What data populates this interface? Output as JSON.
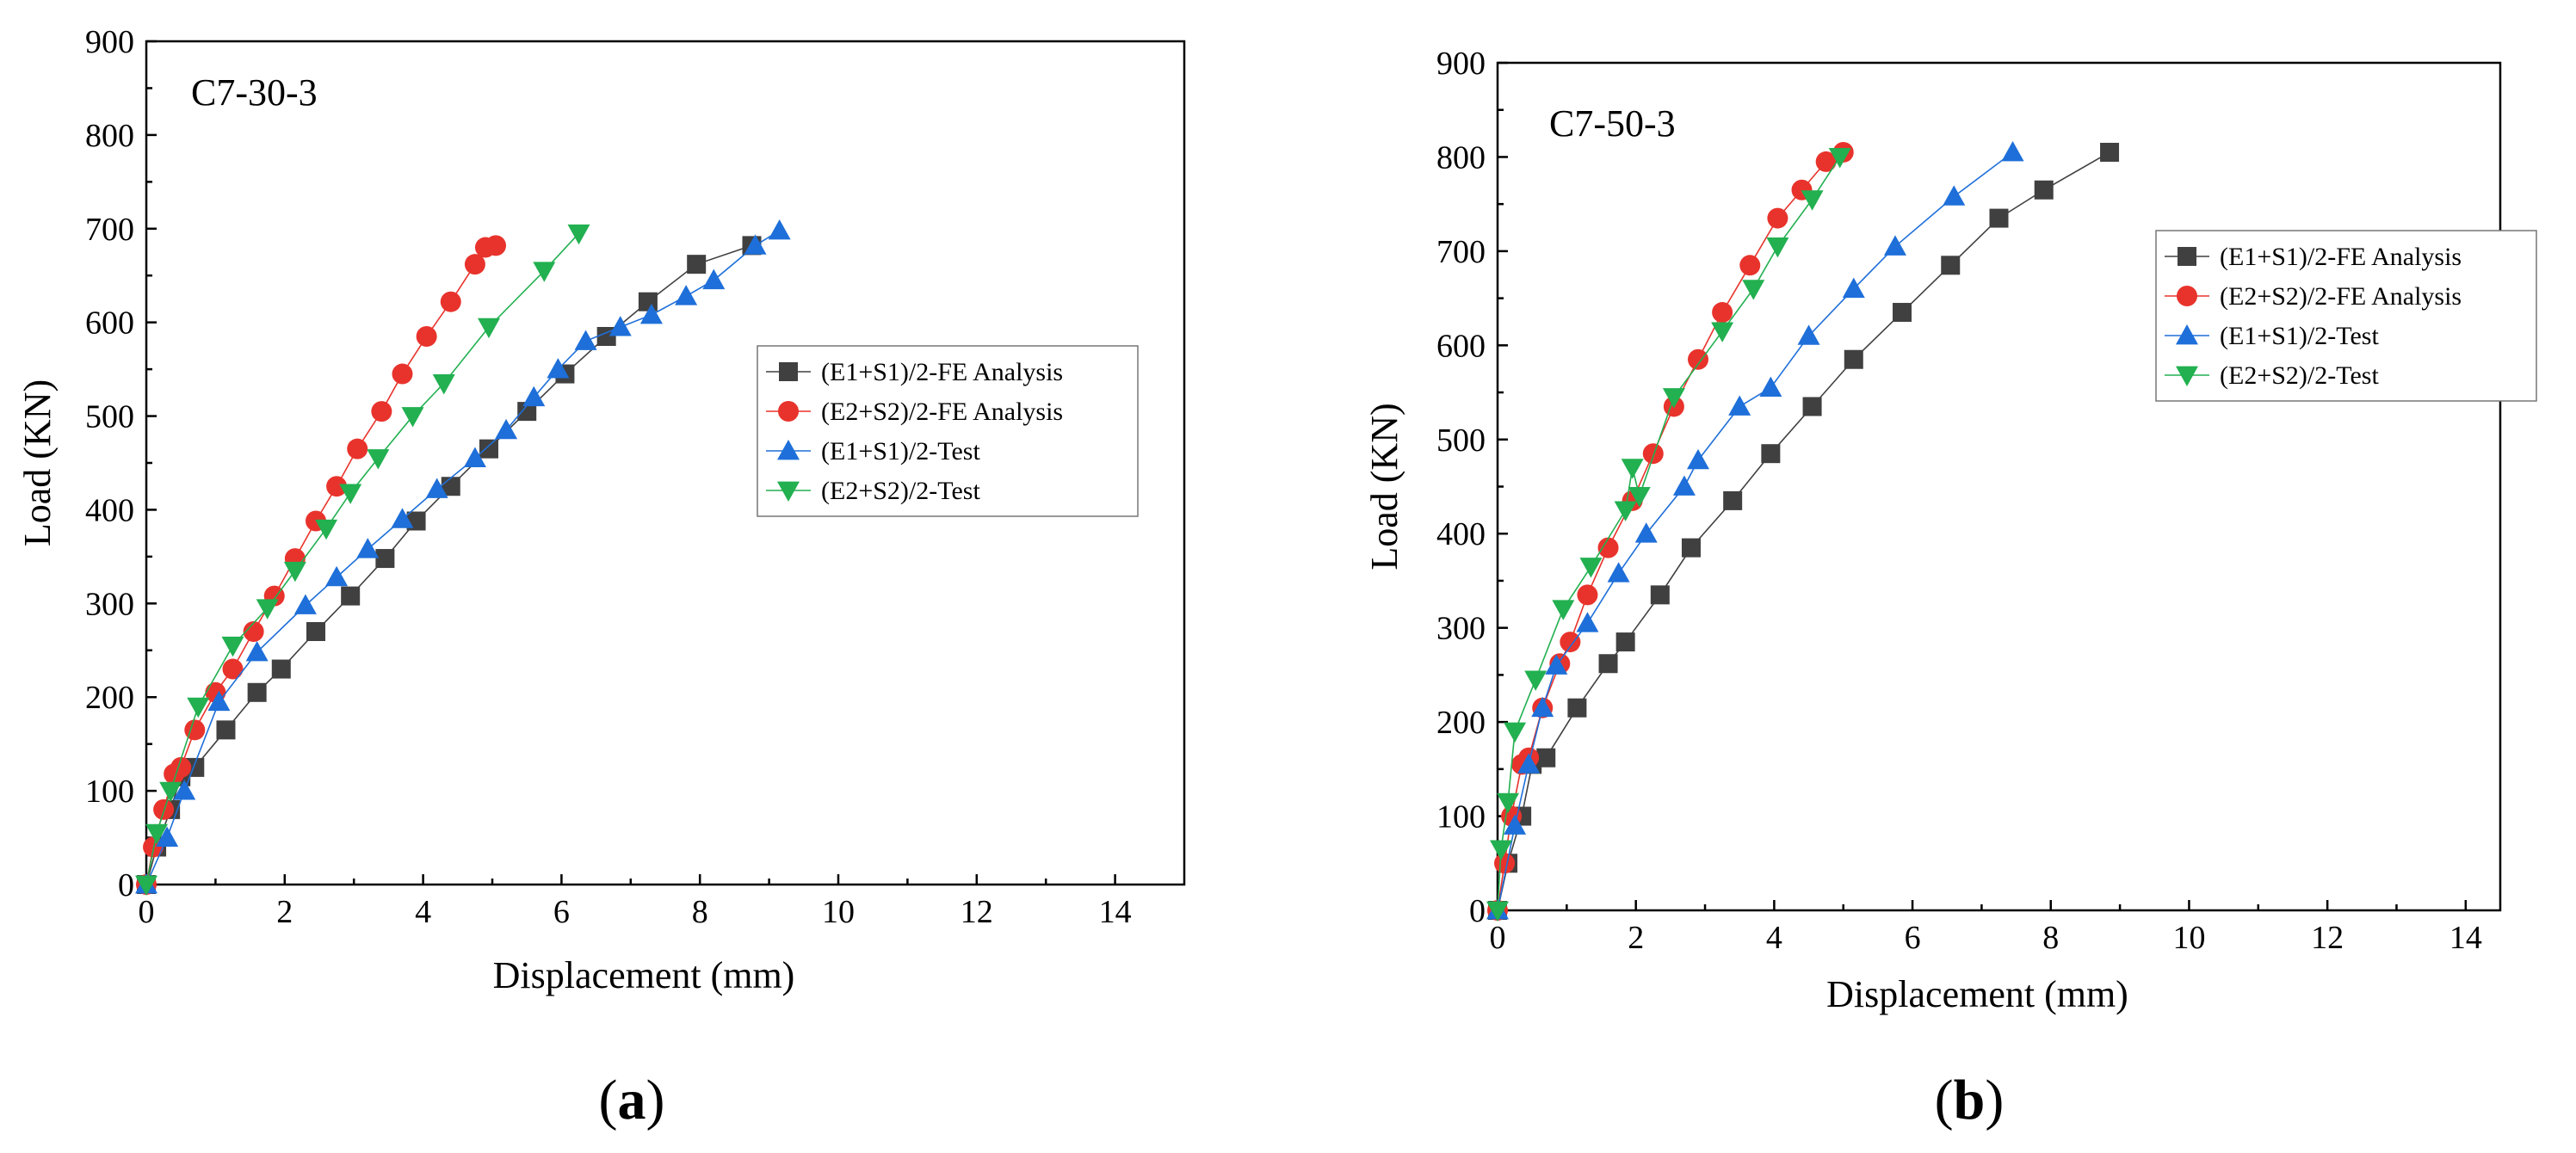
{
  "chart_data": [
    {
      "type": "line",
      "panel_label": "C7-30-3",
      "caption_letter": "a",
      "xlabel": "Displacement (mm)",
      "ylabel": "Load (KN)",
      "xlim": [
        0,
        15
      ],
      "ylim": [
        0,
        900
      ],
      "xticks": [
        0,
        2,
        4,
        6,
        8,
        10,
        12,
        14
      ],
      "yticks": [
        0,
        100,
        200,
        300,
        400,
        500,
        600,
        700,
        800,
        900
      ],
      "legend_position": "center-right",
      "series": [
        {
          "name": "(E1+S1)/2-FE Analysis",
          "color": "#404040",
          "marker": "square",
          "x": [
            0.0,
            0.15,
            0.35,
            0.5,
            0.7,
            1.15,
            1.6,
            1.95,
            2.45,
            2.95,
            3.45,
            3.9,
            4.4,
            4.95,
            5.5,
            6.05,
            6.65,
            7.25,
            7.95,
            8.75
          ],
          "y": [
            0,
            40,
            80,
            115,
            125,
            165,
            205,
            230,
            270,
            308,
            348,
            388,
            425,
            465,
            505,
            545,
            585,
            622,
            662,
            682
          ]
        },
        {
          "name": "(E2+S2)/2-FE Analysis",
          "color": "#e8332c",
          "marker": "circle",
          "x": [
            0.0,
            0.1,
            0.25,
            0.4,
            0.5,
            0.7,
            1.0,
            1.25,
            1.55,
            1.85,
            2.15,
            2.45,
            2.75,
            3.05,
            3.4,
            3.7,
            4.05,
            4.4,
            4.75,
            4.9,
            5.05
          ],
          "y": [
            0,
            40,
            80,
            118,
            125,
            165,
            205,
            230,
            270,
            308,
            348,
            388,
            425,
            465,
            505,
            545,
            585,
            622,
            662,
            680,
            682
          ]
        },
        {
          "name": "(E1+S1)/2-Test",
          "color": "#1e6fd9",
          "marker": "triangle-up",
          "x": [
            0.0,
            0.3,
            0.55,
            1.05,
            1.6,
            2.3,
            2.75,
            3.2,
            3.7,
            4.2,
            4.75,
            5.2,
            5.6,
            5.95,
            6.35,
            6.85,
            7.3,
            7.8,
            8.2,
            8.8,
            9.15
          ],
          "y": [
            0,
            50,
            100,
            195,
            248,
            298,
            328,
            358,
            390,
            422,
            455,
            485,
            520,
            550,
            580,
            595,
            608,
            628,
            645,
            682,
            698
          ]
        },
        {
          "name": "(E2+S2)/2-Test",
          "color": "#22b050",
          "marker": "triangle-down",
          "x": [
            0.0,
            0.15,
            0.35,
            0.75,
            1.25,
            1.75,
            2.15,
            2.6,
            2.95,
            3.35,
            3.85,
            4.3,
            4.95,
            5.75,
            6.25
          ],
          "y": [
            0,
            55,
            100,
            190,
            255,
            295,
            335,
            380,
            418,
            455,
            500,
            535,
            595,
            655,
            695
          ]
        }
      ]
    },
    {
      "type": "line",
      "panel_label": "C7-50-3",
      "caption_letter": "b",
      "xlabel": "Displacement (mm)",
      "ylabel": "Load (KN)",
      "xlim": [
        0,
        14.5
      ],
      "ylim": [
        0,
        900
      ],
      "xticks": [
        0,
        2,
        4,
        6,
        8,
        10,
        12,
        14
      ],
      "yticks": [
        0,
        100,
        200,
        300,
        400,
        500,
        600,
        700,
        800,
        900
      ],
      "legend_position": "top-right",
      "series": [
        {
          "name": "(E1+S1)/2-FE Analysis",
          "color": "#404040",
          "marker": "square",
          "x": [
            0.0,
            0.15,
            0.35,
            0.5,
            0.7,
            1.15,
            1.6,
            1.85,
            2.35,
            2.8,
            3.4,
            3.95,
            4.55,
            5.15,
            5.85,
            6.55,
            7.25,
            7.9,
            8.85
          ],
          "y": [
            0,
            50,
            100,
            155,
            162,
            215,
            262,
            285,
            335,
            385,
            435,
            485,
            535,
            585,
            635,
            685,
            735,
            765,
            805
          ]
        },
        {
          "name": "(E2+S2)/2-FE Analysis",
          "color": "#e8332c",
          "marker": "circle",
          "x": [
            0.0,
            0.1,
            0.2,
            0.35,
            0.45,
            0.65,
            0.9,
            1.05,
            1.3,
            1.6,
            1.95,
            2.25,
            2.55,
            2.9,
            3.25,
            3.65,
            4.05,
            4.4,
            4.75,
            5.0
          ],
          "y": [
            0,
            50,
            100,
            155,
            162,
            215,
            262,
            285,
            335,
            385,
            435,
            485,
            535,
            585,
            635,
            685,
            735,
            765,
            795,
            805
          ]
        },
        {
          "name": "(E1+S1)/2-Test",
          "color": "#1e6fd9",
          "marker": "triangle-up",
          "x": [
            0.0,
            0.25,
            0.45,
            0.65,
            0.85,
            1.3,
            1.75,
            2.15,
            2.7,
            2.9,
            3.5,
            3.95,
            4.5,
            5.15,
            5.75,
            6.6,
            7.45
          ],
          "y": [
            0,
            90,
            155,
            215,
            260,
            305,
            358,
            400,
            450,
            478,
            535,
            555,
            610,
            660,
            705,
            758,
            805
          ]
        },
        {
          "name": "(E2+S2)/2-Test",
          "color": "#22b050",
          "marker": "triangle-down",
          "x": [
            0.0,
            0.05,
            0.15,
            0.25,
            0.55,
            0.95,
            1.35,
            1.85,
            1.95,
            2.05,
            2.55,
            3.25,
            3.7,
            4.05,
            4.55,
            4.95
          ],
          "y": [
            0,
            65,
            115,
            190,
            245,
            320,
            365,
            425,
            470,
            440,
            545,
            615,
            660,
            705,
            755,
            800
          ]
        }
      ]
    }
  ]
}
